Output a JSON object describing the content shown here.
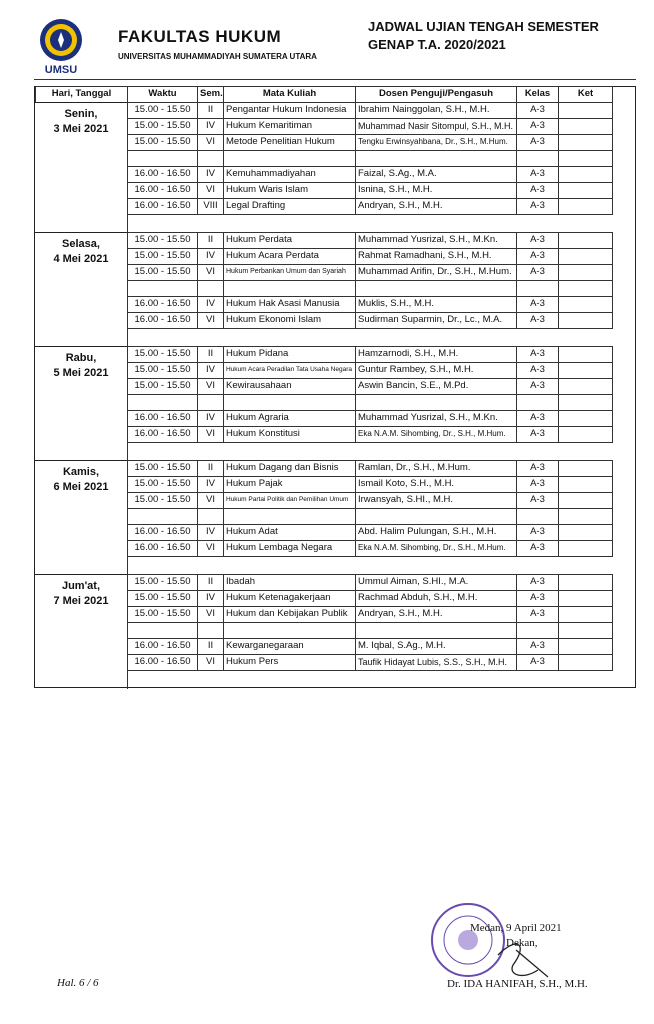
{
  "header": {
    "logo_text": "UMSU",
    "faculty": "FAKULTAS HUKUM",
    "university": "UNIVERSITAS MUHAMMADIYAH SUMATERA UTARA",
    "exam_title": "JADWAL UJIAN TENGAH SEMESTER",
    "period": "GENAP T.A. 2020/2021"
  },
  "table": {
    "columns": [
      "Hari, Tanggal",
      "Waktu",
      "Sem.",
      "Mata Kuliah",
      "Dosen Penguji/Pengasuh",
      "Kelas",
      "Ket"
    ],
    "days": [
      {
        "day": "Senin,",
        "date": "3 Mei 2021",
        "groups": [
          [
            {
              "time": "15.00 - 15.50",
              "sem": "II",
              "course": "Pengantar Hukum Indonesia",
              "lecturer": "Ibrahim Nainggolan, S.H., M.H.",
              "class": "A-3"
            },
            {
              "time": "15.00 - 15.50",
              "sem": "IV",
              "course": "Hukum Kemaritiman",
              "lecturer": "Muhammad Nasir Sitompul, S.H., M.H.",
              "class": "A-3"
            },
            {
              "time": "15.00 - 15.50",
              "sem": "VI",
              "course": "Metode Penelitian Hukum",
              "lecturer": "Tengku Erwinsyahbana, Dr., S.H., M.Hum.",
              "class": "A-3"
            }
          ],
          [
            {
              "time": "16.00 - 16.50",
              "sem": "IV",
              "course": "Kemuhammadiyahan",
              "lecturer": "Faizal, S.Ag., M.A.",
              "class": "A-3"
            },
            {
              "time": "16.00 - 16.50",
              "sem": "VI",
              "course": "Hukum Waris Islam",
              "lecturer": "Isnina, S.H., M.H.",
              "class": "A-3"
            },
            {
              "time": "16.00 - 16.50",
              "sem": "VIII",
              "course": "Legal Drafting",
              "lecturer": "Andryan, S.H., M.H.",
              "class": "A-3"
            }
          ]
        ]
      },
      {
        "day": "Selasa,",
        "date": "4 Mei 2021",
        "groups": [
          [
            {
              "time": "15.00 - 15.50",
              "sem": "II",
              "course": "Hukum Perdata",
              "lecturer": "Muhammad Yusrizal, S.H., M.Kn.",
              "class": "A-3"
            },
            {
              "time": "15.00 - 15.50",
              "sem": "IV",
              "course": "Hukum Acara Perdata",
              "lecturer": "Rahmat Ramadhani, S.H., M.H.",
              "class": "A-3"
            },
            {
              "time": "15.00 - 15.50",
              "sem": "VI",
              "course": "Hukum Perbankan Umum dan Syariah",
              "lecturer": "Muhammad Arifin, Dr., S.H., M.Hum.",
              "class": "A-3"
            }
          ],
          [
            {
              "time": "16.00 - 16.50",
              "sem": "IV",
              "course": "Hukum Hak Asasi Manusia",
              "lecturer": "Muklis, S.H., M.H.",
              "class": "A-3"
            },
            {
              "time": "16.00 - 16.50",
              "sem": "VI",
              "course": "Hukum Ekonomi Islam",
              "lecturer": "Sudirman Suparmin, Dr., Lc., M.A.",
              "class": "A-3"
            }
          ]
        ]
      },
      {
        "day": "Rabu,",
        "date": "5 Mei 2021",
        "groups": [
          [
            {
              "time": "15.00 - 15.50",
              "sem": "II",
              "course": "Hukum Pidana",
              "lecturer": "Hamzarnodi, S.H., M.H.",
              "class": "A-3"
            },
            {
              "time": "15.00 - 15.50",
              "sem": "IV",
              "course": "Hukum Acara Peradilan Tata Usaha Negara",
              "lecturer": "Guntur Rambey, S.H., M.H.",
              "class": "A-3"
            },
            {
              "time": "15.00 - 15.50",
              "sem": "VI",
              "course": "Kewirausahaan",
              "lecturer": "Aswin Bancin, S.E., M.Pd.",
              "class": "A-3"
            }
          ],
          [
            {
              "time": "16.00 - 16.50",
              "sem": "IV",
              "course": "Hukum Agraria",
              "lecturer": "Muhammad Yusrizal, S.H., M.Kn.",
              "class": "A-3"
            },
            {
              "time": "16.00 - 16.50",
              "sem": "VI",
              "course": "Hukum Konstitusi",
              "lecturer": "Eka N.A.M. Sihombing, Dr., S.H., M.Hum.",
              "class": "A-3"
            }
          ]
        ]
      },
      {
        "day": "Kamis,",
        "date": "6 Mei 2021",
        "groups": [
          [
            {
              "time": "15.00 - 15.50",
              "sem": "II",
              "course": "Hukum Dagang dan Bisnis",
              "lecturer": "Ramlan, Dr., S.H., M.Hum.",
              "class": "A-3"
            },
            {
              "time": "15.00 - 15.50",
              "sem": "IV",
              "course": "Hukum Pajak",
              "lecturer": "Ismail Koto, S.H., M.H.",
              "class": "A-3"
            },
            {
              "time": "15.00 - 15.50",
              "sem": "VI",
              "course": "Hukum Partai Politik dan Pemilihan Umum",
              "lecturer": "Irwansyah, S.HI., M.H.",
              "class": "A-3"
            }
          ],
          [
            {
              "time": "16.00 - 16.50",
              "sem": "IV",
              "course": "Hukum Adat",
              "lecturer": "Abd. Halim Pulungan, S.H., M.H.",
              "class": "A-3"
            },
            {
              "time": "16.00 - 16.50",
              "sem": "VI",
              "course": "Hukum Lembaga Negara",
              "lecturer": "Eka N.A.M. Sihombing, Dr., S.H., M.Hum.",
              "class": "A-3"
            }
          ]
        ]
      },
      {
        "day": "Jum'at,",
        "date": "7 Mei 2021",
        "groups": [
          [
            {
              "time": "15.00 - 15.50",
              "sem": "II",
              "course": "Ibadah",
              "lecturer": "Ummul Aiman, S.HI., M.A.",
              "class": "A-3"
            },
            {
              "time": "15.00 - 15.50",
              "sem": "IV",
              "course": "Hukum Ketenagakerjaan",
              "lecturer": "Rachmad Abduh, S.H., M.H.",
              "class": "A-3"
            },
            {
              "time": "15.00 - 15.50",
              "sem": "VI",
              "course": "Hukum dan Kebijakan Publik",
              "lecturer": "Andryan, S.H., M.H.",
              "class": "A-3"
            }
          ],
          [
            {
              "time": "16.00 - 16.50",
              "sem": "II",
              "course": "Kewarganegaraan",
              "lecturer": "M. Iqbal, S.Ag., M.H.",
              "class": "A-3"
            },
            {
              "time": "16.00 - 16.50",
              "sem": "VI",
              "course": "Hukum Pers",
              "lecturer": "Taufik Hidayat Lubis, S.S., S.H., M.H.",
              "class": "A-3"
            }
          ]
        ]
      }
    ]
  },
  "footer": {
    "page": "Hal. 6 / 6",
    "place_date": "Medan, 9 April 2021",
    "position": "Dekan,",
    "signatory": "Dr. IDA HANIFAH, S.H., M.H."
  }
}
